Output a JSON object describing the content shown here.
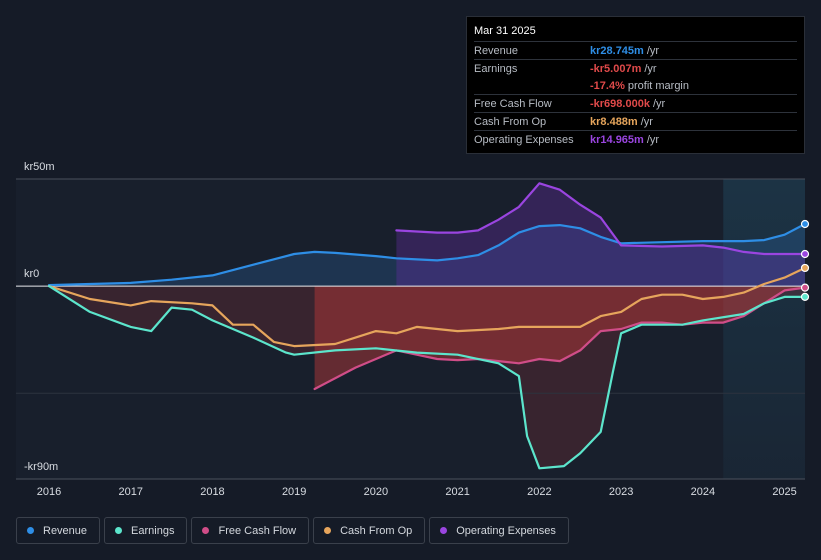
{
  "chart_data": {
    "type": "area",
    "title": "",
    "y_unit_labels": {
      "top": "kr50m",
      "zero": "kr0",
      "bottom": "-kr90m"
    },
    "ylim": [
      -90,
      50
    ],
    "xlim": [
      2016,
      2025.25
    ],
    "x_ticks": [
      "2016",
      "2017",
      "2018",
      "2019",
      "2020",
      "2021",
      "2022",
      "2023",
      "2024",
      "2025"
    ],
    "forecast_start": 2024.25,
    "series": [
      {
        "name": "Revenue",
        "color": "#2e8ee6",
        "points": [
          [
            2016,
            0.5
          ],
          [
            2016.5,
            1
          ],
          [
            2017,
            1.5
          ],
          [
            2017.5,
            3
          ],
          [
            2018,
            5
          ],
          [
            2018.5,
            10
          ],
          [
            2019,
            15
          ],
          [
            2019.25,
            16
          ],
          [
            2019.5,
            15.5
          ],
          [
            2020,
            14
          ],
          [
            2020.25,
            13
          ],
          [
            2020.5,
            12.5
          ],
          [
            2020.75,
            12
          ],
          [
            2021,
            13
          ],
          [
            2021.25,
            14.5
          ],
          [
            2021.5,
            19
          ],
          [
            2021.75,
            25
          ],
          [
            2022,
            28
          ],
          [
            2022.25,
            28.5
          ],
          [
            2022.5,
            27
          ],
          [
            2022.75,
            23
          ],
          [
            2023,
            20
          ],
          [
            2023.5,
            20.5
          ],
          [
            2024,
            21
          ],
          [
            2024.5,
            21
          ],
          [
            2024.75,
            21.5
          ],
          [
            2025,
            24
          ],
          [
            2025.25,
            29
          ]
        ]
      },
      {
        "name": "Earnings",
        "color": "#5ce5cc",
        "points": [
          [
            2016,
            0
          ],
          [
            2016.5,
            -12
          ],
          [
            2017,
            -19
          ],
          [
            2017.25,
            -21
          ],
          [
            2017.5,
            -10
          ],
          [
            2017.75,
            -11
          ],
          [
            2018,
            -16
          ],
          [
            2018.5,
            -24
          ],
          [
            2018.9,
            -31
          ],
          [
            2019,
            -32
          ],
          [
            2019.5,
            -30
          ],
          [
            2020,
            -29
          ],
          [
            2020.5,
            -31
          ],
          [
            2021,
            -32
          ],
          [
            2021.5,
            -36
          ],
          [
            2021.75,
            -42
          ],
          [
            2021.85,
            -70
          ],
          [
            2022,
            -85
          ],
          [
            2022.3,
            -84
          ],
          [
            2022.5,
            -78
          ],
          [
            2022.75,
            -68
          ],
          [
            2022.9,
            -40
          ],
          [
            2023,
            -22
          ],
          [
            2023.25,
            -18
          ],
          [
            2023.75,
            -18
          ],
          [
            2024,
            -16
          ],
          [
            2024.5,
            -13
          ],
          [
            2024.75,
            -8
          ],
          [
            2025,
            -5
          ],
          [
            2025.25,
            -5
          ]
        ]
      },
      {
        "name": "Free Cash Flow",
        "color": "#d04d88",
        "points": [
          [
            2019.25,
            -48
          ],
          [
            2019.75,
            -38
          ],
          [
            2020,
            -34
          ],
          [
            2020.25,
            -30
          ],
          [
            2020.5,
            -32
          ],
          [
            2020.75,
            -34
          ],
          [
            2021,
            -34.5
          ],
          [
            2021.25,
            -34
          ],
          [
            2021.5,
            -35
          ],
          [
            2021.75,
            -36
          ],
          [
            2022,
            -34
          ],
          [
            2022.25,
            -35
          ],
          [
            2022.5,
            -30
          ],
          [
            2022.75,
            -21
          ],
          [
            2023,
            -20
          ],
          [
            2023.25,
            -17
          ],
          [
            2023.5,
            -17
          ],
          [
            2023.75,
            -18
          ],
          [
            2024,
            -17
          ],
          [
            2024.25,
            -17
          ],
          [
            2024.5,
            -14
          ],
          [
            2024.75,
            -8
          ],
          [
            2025,
            -2
          ],
          [
            2025.25,
            -0.7
          ]
        ]
      },
      {
        "name": "Cash From Op",
        "color": "#e6a55c",
        "points": [
          [
            2016,
            0
          ],
          [
            2016.5,
            -6
          ],
          [
            2017,
            -9
          ],
          [
            2017.25,
            -7
          ],
          [
            2017.75,
            -8
          ],
          [
            2018,
            -9
          ],
          [
            2018.25,
            -18
          ],
          [
            2018.5,
            -18
          ],
          [
            2018.75,
            -26
          ],
          [
            2019,
            -28
          ],
          [
            2019.5,
            -27
          ],
          [
            2019.75,
            -24
          ],
          [
            2020,
            -21
          ],
          [
            2020.25,
            -22
          ],
          [
            2020.5,
            -19
          ],
          [
            2021,
            -21
          ],
          [
            2021.5,
            -20
          ],
          [
            2021.75,
            -19
          ],
          [
            2022,
            -19
          ],
          [
            2022.5,
            -19
          ],
          [
            2022.75,
            -14
          ],
          [
            2023,
            -12
          ],
          [
            2023.25,
            -6
          ],
          [
            2023.5,
            -4
          ],
          [
            2023.75,
            -4
          ],
          [
            2024,
            -6
          ],
          [
            2024.25,
            -5
          ],
          [
            2024.5,
            -3
          ],
          [
            2024.75,
            1
          ],
          [
            2025,
            4
          ],
          [
            2025.25,
            8.5
          ]
        ]
      },
      {
        "name": "Operating Expenses",
        "color": "#9a45e0",
        "points": [
          [
            2020.25,
            26
          ],
          [
            2020.5,
            25.5
          ],
          [
            2020.75,
            25
          ],
          [
            2021,
            25
          ],
          [
            2021.25,
            26
          ],
          [
            2021.5,
            31
          ],
          [
            2021.75,
            37
          ],
          [
            2022,
            48
          ],
          [
            2022.25,
            45
          ],
          [
            2022.5,
            38
          ],
          [
            2022.75,
            32
          ],
          [
            2023,
            19
          ],
          [
            2023.5,
            18.5
          ],
          [
            2024,
            19
          ],
          [
            2024.25,
            18
          ],
          [
            2024.5,
            16
          ],
          [
            2024.75,
            15
          ],
          [
            2025,
            15
          ],
          [
            2025.25,
            15
          ]
        ]
      }
    ]
  },
  "tooltip": {
    "date": "Mar 31 2025",
    "rows": [
      {
        "label": "Revenue",
        "value": "kr28.745m",
        "unit": "/yr",
        "color": "#2e8ee6"
      },
      {
        "label": "Earnings",
        "value": "-kr5.007m",
        "unit": "/yr",
        "color": "#e04a4a"
      },
      {
        "label": "",
        "value": "-17.4%",
        "unit": "profit margin",
        "color": "#e04a4a"
      },
      {
        "label": "Free Cash Flow",
        "value": "-kr698.000k",
        "unit": "/yr",
        "color": "#e04a4a"
      },
      {
        "label": "Cash From Op",
        "value": "kr8.488m",
        "unit": "/yr",
        "color": "#e6a55c"
      },
      {
        "label": "Operating Expenses",
        "value": "kr14.965m",
        "unit": "/yr",
        "color": "#9a45e0"
      }
    ]
  },
  "legend": [
    {
      "label": "Revenue",
      "color": "#2e8ee6"
    },
    {
      "label": "Earnings",
      "color": "#5ce5cc"
    },
    {
      "label": "Free Cash Flow",
      "color": "#d04d88"
    },
    {
      "label": "Cash From Op",
      "color": "#e6a55c"
    },
    {
      "label": "Operating Expenses",
      "color": "#9a45e0"
    }
  ]
}
